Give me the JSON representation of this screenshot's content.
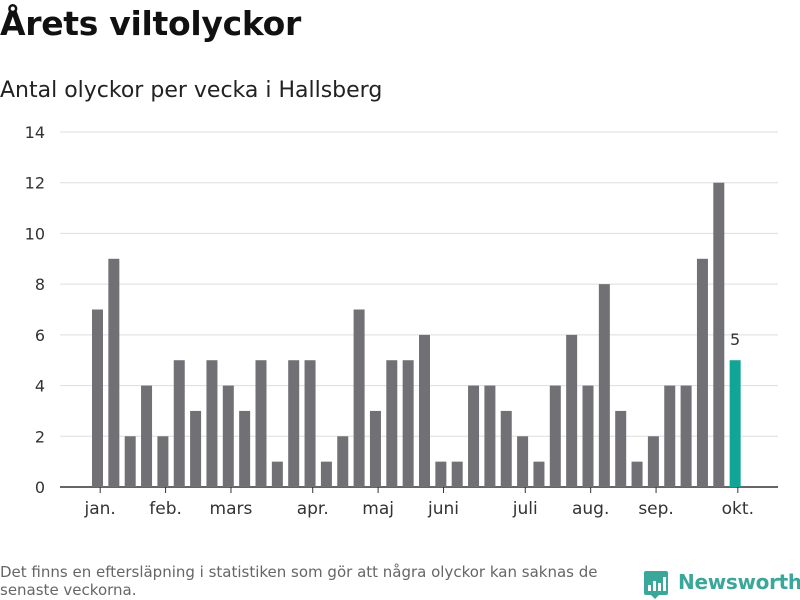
{
  "header": {
    "title": "Årets viltolyckor",
    "subtitle": "Antal olyckor per vecka i Hallsberg"
  },
  "footer": {
    "note": "Det finns en eftersläpning i statistiken som gör att några olyckor kan saknas de senaste veckorna.",
    "brand": "Newsworthy"
  },
  "colors": {
    "bar": "#717075",
    "highlight": "#11a598",
    "grid": "#dddddd",
    "axis": "#333333",
    "brand": "#3aa79a"
  },
  "chart_data": {
    "type": "bar",
    "title": "Årets viltolyckor",
    "subtitle": "Antal olyckor per vecka i Hallsberg",
    "xlabel": "",
    "ylabel": "",
    "ylim": [
      0,
      14
    ],
    "yticks": [
      0,
      2,
      4,
      6,
      8,
      10,
      12,
      14
    ],
    "grid": true,
    "values": [
      7,
      9,
      2,
      4,
      2,
      5,
      3,
      5,
      4,
      3,
      5,
      1,
      5,
      5,
      1,
      2,
      7,
      3,
      5,
      5,
      6,
      1,
      1,
      4,
      4,
      3,
      2,
      1,
      4,
      6,
      4,
      8,
      3,
      1,
      2,
      4,
      4,
      9,
      12,
      5
    ],
    "highlight_index": 39,
    "data_labels": [
      {
        "index": 39,
        "text": "5"
      }
    ],
    "month_labels": [
      {
        "label": "jan.",
        "index": 0.5
      },
      {
        "label": "feb.",
        "index": 4.5
      },
      {
        "label": "mars",
        "index": 8.5
      },
      {
        "label": "apr.",
        "index": 13.5
      },
      {
        "label": "maj",
        "index": 17.5
      },
      {
        "label": "juni",
        "index": 21.5
      },
      {
        "label": "juli",
        "index": 26.5
      },
      {
        "label": "aug.",
        "index": 30.5
      },
      {
        "label": "sep.",
        "index": 34.5
      },
      {
        "label": "okt.",
        "index": 39.5
      }
    ]
  }
}
